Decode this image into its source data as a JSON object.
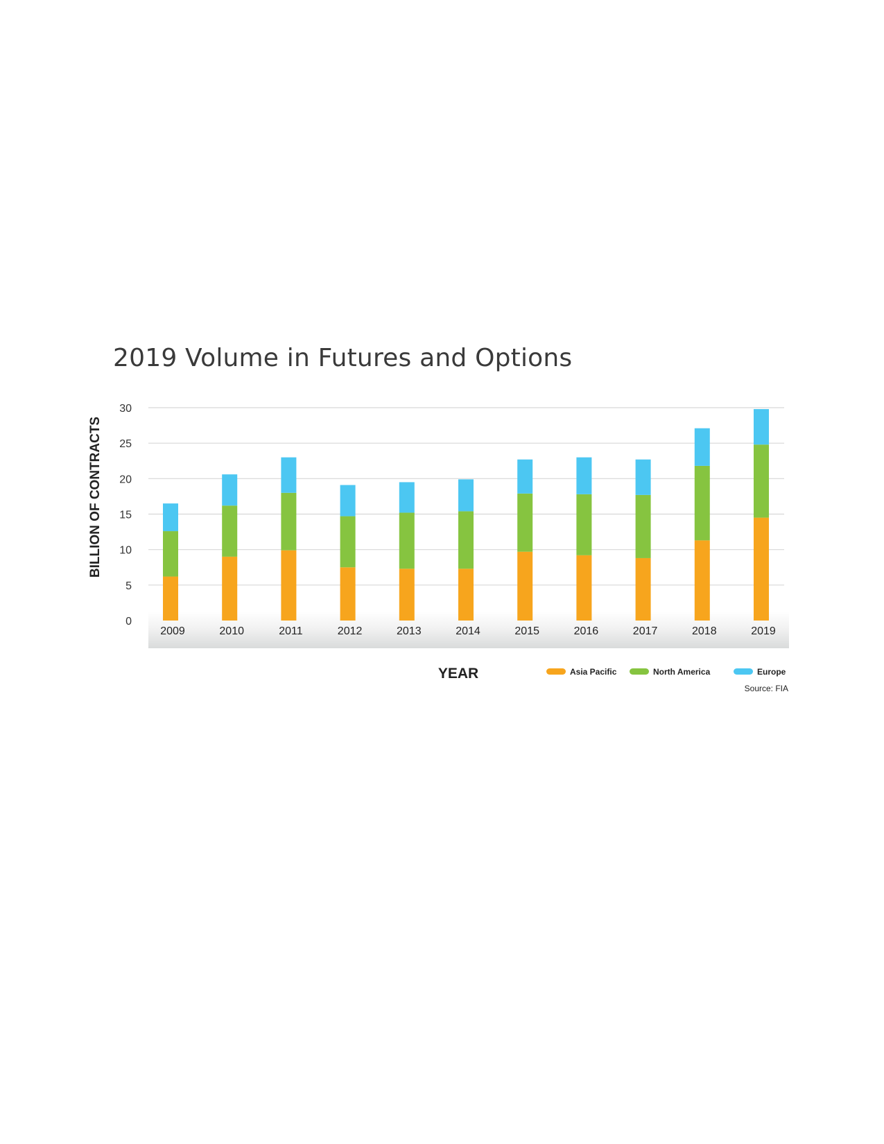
{
  "chart_data": {
    "type": "bar",
    "stacked": true,
    "title": "2019 Volume in Futures and Options",
    "xlabel": "YEAR",
    "ylabel": "BILLION OF CONTRACTS",
    "ylim": [
      0,
      30
    ],
    "yticks": [
      "0",
      "5",
      "10",
      "15",
      "20",
      "25",
      "30"
    ],
    "grid": true,
    "legend_position": "bottom-right",
    "categories": [
      "2009",
      "2010",
      "2011",
      "2012",
      "2013",
      "2014",
      "2015",
      "2016",
      "2017",
      "2018",
      "2019"
    ],
    "series": [
      {
        "name": "Asia Pacific",
        "color": "#F7A51D",
        "values": [
          6.2,
          9.0,
          9.9,
          7.5,
          7.3,
          7.3,
          9.7,
          9.2,
          8.8,
          11.3,
          14.5
        ]
      },
      {
        "name": "North America",
        "color": "#86C440",
        "values": [
          6.4,
          7.2,
          8.1,
          7.2,
          7.9,
          8.1,
          8.2,
          8.6,
          8.9,
          10.5,
          10.3
        ]
      },
      {
        "name": "Europe",
        "color": "#4CC7F2",
        "values": [
          3.9,
          4.4,
          5.0,
          4.4,
          4.3,
          4.5,
          4.8,
          5.2,
          5.0,
          5.3,
          5.0
        ]
      }
    ],
    "source": "Source: FIA"
  }
}
